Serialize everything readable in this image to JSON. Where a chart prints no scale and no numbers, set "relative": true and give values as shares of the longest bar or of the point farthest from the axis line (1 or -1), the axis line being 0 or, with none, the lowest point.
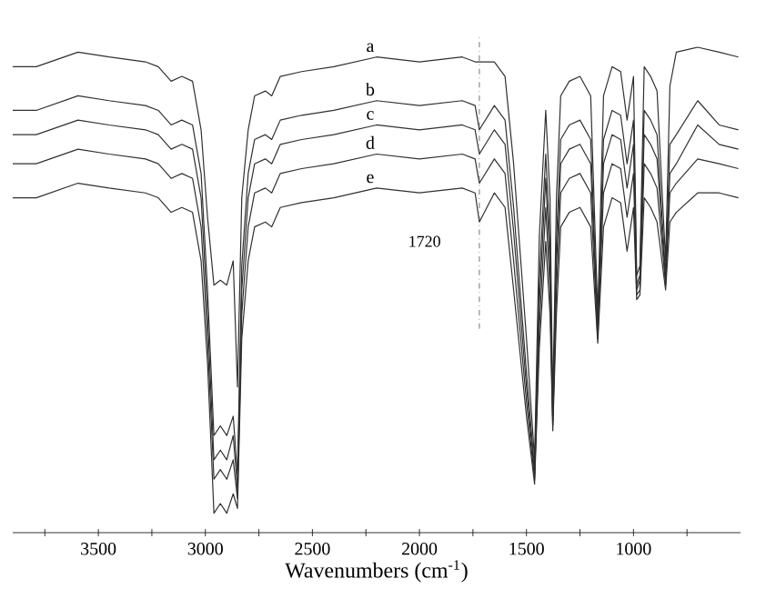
{
  "chart_data": {
    "type": "line",
    "relative": true,
    "xlabel": "Wavenumbers (cm$^{-1}$)",
    "xlim": [
      3900,
      500
    ],
    "xticks": [
      {
        "value": 3750,
        "label": null
      },
      3500,
      {
        "value": 3250,
        "label": null
      },
      3000,
      {
        "value": 2750,
        "label": null
      },
      2500,
      {
        "value": 2250,
        "label": null
      },
      2000,
      {
        "value": 1750,
        "label": null
      },
      1500,
      {
        "value": 1250,
        "label": null
      },
      1000,
      {
        "value": 750,
        "label": null
      }
    ],
    "x": [
      3900,
      3790,
      3595,
      3450,
      3280,
      3220,
      3160,
      3110,
      3060,
      3020,
      2990,
      2960,
      2930,
      2900,
      2870,
      2850,
      2830,
      2800,
      2770,
      2720,
      2690,
      2650,
      2550,
      2400,
      2200,
      2000,
      1800,
      1740,
      1720,
      1650,
      1600,
      1560,
      1500,
      1462,
      1440,
      1410,
      1390,
      1377,
      1360,
      1340,
      1300,
      1250,
      1200,
      1167,
      1140,
      1100,
      1060,
      1030,
      1000,
      985,
      970,
      950,
      920,
      890,
      850,
      830,
      800,
      700,
      600,
      510
    ],
    "marker": "none",
    "line_style": "solid",
    "grid": false,
    "legend": false,
    "series": [
      {
        "name": "a",
        "color": "#303030",
        "values": [
          0.96,
          0.96,
          0.99,
          0.98,
          0.97,
          0.96,
          0.93,
          0.94,
          0.93,
          0.83,
          0.65,
          0.51,
          0.52,
          0.51,
          0.56,
          0.3,
          0.69,
          0.83,
          0.9,
          0.91,
          0.9,
          0.94,
          0.95,
          0.96,
          0.98,
          0.97,
          0.98,
          0.97,
          0.97,
          0.97,
          0.94,
          0.76,
          0.4,
          0.15,
          0.61,
          0.87,
          0.69,
          0.26,
          0.69,
          0.9,
          0.93,
          0.94,
          0.9,
          0.45,
          0.9,
          0.96,
          0.95,
          0.85,
          0.94,
          0.53,
          0.55,
          0.96,
          0.94,
          0.91,
          0.56,
          0.92,
          0.99,
          1.0,
          0.99,
          0.98
        ]
      },
      {
        "name": "b",
        "color": "#303030",
        "values": [
          0.87,
          0.87,
          0.9,
          0.89,
          0.88,
          0.87,
          0.84,
          0.85,
          0.84,
          0.74,
          0.5,
          0.2,
          0.22,
          0.2,
          0.24,
          0.12,
          0.55,
          0.74,
          0.81,
          0.82,
          0.81,
          0.85,
          0.86,
          0.87,
          0.89,
          0.88,
          0.89,
          0.88,
          0.83,
          0.88,
          0.85,
          0.67,
          0.33,
          0.13,
          0.52,
          0.78,
          0.6,
          0.24,
          0.6,
          0.81,
          0.84,
          0.85,
          0.81,
          0.42,
          0.81,
          0.87,
          0.86,
          0.76,
          0.85,
          0.51,
          0.53,
          0.87,
          0.85,
          0.82,
          0.53,
          0.8,
          0.82,
          0.89,
          0.84,
          0.83
        ]
      },
      {
        "name": "c",
        "color": "#303030",
        "values": [
          0.82,
          0.82,
          0.85,
          0.84,
          0.83,
          0.82,
          0.79,
          0.8,
          0.79,
          0.69,
          0.45,
          0.15,
          0.17,
          0.15,
          0.2,
          0.09,
          0.5,
          0.69,
          0.76,
          0.77,
          0.76,
          0.8,
          0.81,
          0.82,
          0.84,
          0.83,
          0.84,
          0.83,
          0.78,
          0.83,
          0.8,
          0.62,
          0.3,
          0.12,
          0.47,
          0.73,
          0.55,
          0.23,
          0.55,
          0.76,
          0.79,
          0.8,
          0.76,
          0.41,
          0.76,
          0.82,
          0.81,
          0.71,
          0.8,
          0.5,
          0.52,
          0.82,
          0.8,
          0.77,
          0.52,
          0.74,
          0.76,
          0.84,
          0.8,
          0.79
        ]
      },
      {
        "name": "d",
        "color": "#303030",
        "values": [
          0.76,
          0.76,
          0.79,
          0.78,
          0.77,
          0.76,
          0.73,
          0.74,
          0.73,
          0.63,
          0.4,
          0.11,
          0.13,
          0.11,
          0.15,
          0.07,
          0.45,
          0.63,
          0.7,
          0.71,
          0.7,
          0.74,
          0.75,
          0.76,
          0.78,
          0.77,
          0.78,
          0.77,
          0.72,
          0.77,
          0.74,
          0.56,
          0.27,
          0.11,
          0.42,
          0.67,
          0.5,
          0.22,
          0.5,
          0.7,
          0.73,
          0.74,
          0.7,
          0.4,
          0.7,
          0.76,
          0.75,
          0.65,
          0.74,
          0.49,
          0.5,
          0.76,
          0.74,
          0.71,
          0.51,
          0.7,
          0.72,
          0.77,
          0.76,
          0.75
        ]
      },
      {
        "name": "e",
        "color": "#303030",
        "values": [
          0.69,
          0.69,
          0.72,
          0.71,
          0.7,
          0.69,
          0.66,
          0.67,
          0.66,
          0.56,
          0.35,
          0.04,
          0.06,
          0.04,
          0.08,
          0.05,
          0.4,
          0.56,
          0.63,
          0.64,
          0.63,
          0.67,
          0.68,
          0.69,
          0.71,
          0.7,
          0.71,
          0.7,
          0.64,
          0.7,
          0.67,
          0.5,
          0.24,
          0.1,
          0.38,
          0.6,
          0.45,
          0.21,
          0.45,
          0.63,
          0.66,
          0.67,
          0.63,
          0.39,
          0.63,
          0.69,
          0.68,
          0.58,
          0.67,
          0.48,
          0.49,
          0.69,
          0.67,
          0.64,
          0.5,
          0.64,
          0.66,
          0.7,
          0.7,
          0.69
        ]
      }
    ],
    "ref_lines": [
      {
        "axis": "x",
        "value": 1720,
        "label": "1720",
        "line_style": "dashdotted",
        "color": "#505050"
      }
    ]
  }
}
